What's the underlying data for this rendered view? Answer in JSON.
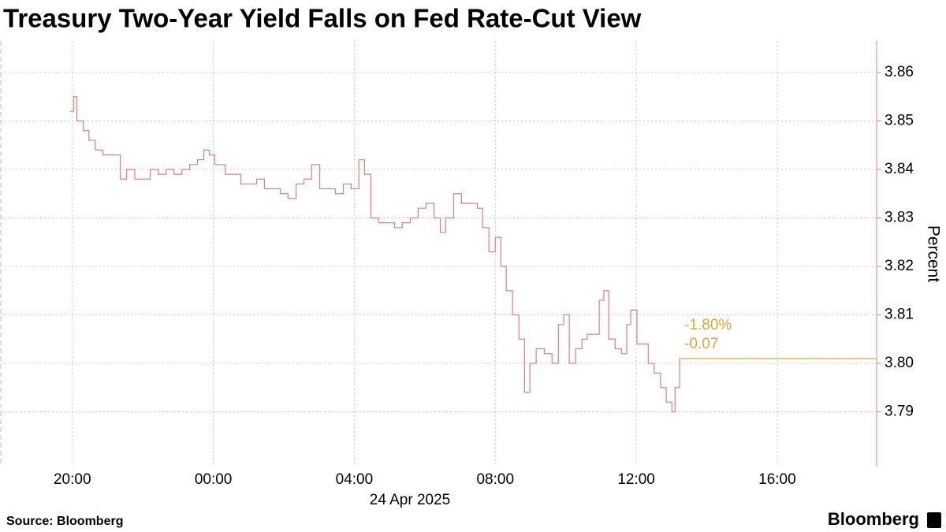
{
  "chart_data": {
    "type": "line",
    "title": "Treasury Two-Year Yield Falls on Fed Rate-Cut View",
    "y_axis_label": "Percent",
    "date_label": "24 Apr 2025",
    "source": "Source: Bloomberg",
    "brand": "Bloomberg",
    "annotations": [
      "-1.80%",
      "-0.07"
    ],
    "annotation_color": "#e8a23a",
    "grid": true,
    "xlim": [
      -6.03,
      18.82
    ],
    "xticks": [
      {
        "value": -4,
        "label": "20:00"
      },
      {
        "value": 0,
        "label": "00:00"
      },
      {
        "value": 4,
        "label": "04:00"
      },
      {
        "value": 8,
        "label": "08:00"
      },
      {
        "value": 12,
        "label": "12:00"
      },
      {
        "value": 16,
        "label": "16:00"
      }
    ],
    "ylim": [
      3.7787,
      3.8665
    ],
    "yticks": [
      3.79,
      {
        "value": 3.8,
        "label": "3.80"
      },
      3.81,
      3.82,
      3.83,
      3.84,
      3.85,
      3.86
    ],
    "x": [
      -4.07,
      -3.96,
      -3.87,
      -3.69,
      -3.53,
      -3.35,
      -3.13,
      -2.79,
      -2.64,
      -2.46,
      -2.23,
      -2.01,
      -1.79,
      -1.56,
      -1.34,
      -1.12,
      -0.89,
      -0.67,
      -0.45,
      -0.27,
      -0.11,
      0.04,
      0.34,
      0.56,
      0.78,
      1.01,
      1.23,
      1.45,
      1.68,
      1.9,
      2.12,
      2.35,
      2.57,
      2.79,
      3.02,
      3.24,
      3.46,
      3.69,
      3.91,
      4.13,
      4.29,
      4.47,
      4.69,
      4.92,
      5.14,
      5.36,
      5.59,
      5.81,
      6.03,
      6.26,
      6.44,
      6.59,
      6.82,
      7.04,
      7.26,
      7.49,
      7.64,
      7.82,
      8.0,
      8.16,
      8.31,
      8.49,
      8.67,
      8.83,
      8.98,
      9.16,
      9.39,
      9.61,
      9.79,
      9.94,
      10.1,
      10.28,
      10.46,
      10.61,
      10.77,
      10.95,
      11.08,
      11.22,
      11.4,
      11.58,
      11.73,
      11.84,
      12.02,
      12.18,
      12.34,
      12.51,
      12.69,
      12.85,
      13.01,
      13.1,
      13.23
    ],
    "series": [
      {
        "name": "Treasury two-year yield",
        "color": "#e57c7c",
        "values": [
          3.852,
          3.855,
          3.85,
          3.848,
          3.846,
          3.844,
          3.843,
          3.843,
          3.838,
          3.84,
          3.838,
          3.838,
          3.84,
          3.839,
          3.84,
          3.839,
          3.84,
          3.841,
          3.842,
          3.844,
          3.843,
          3.841,
          3.839,
          3.839,
          3.837,
          3.837,
          3.838,
          3.836,
          3.836,
          3.835,
          3.834,
          3.837,
          3.838,
          3.841,
          3.836,
          3.836,
          3.835,
          3.837,
          3.836,
          3.842,
          3.839,
          3.83,
          3.829,
          3.829,
          3.828,
          3.829,
          3.83,
          3.832,
          3.833,
          3.83,
          3.827,
          3.83,
          3.835,
          3.833,
          3.833,
          3.832,
          3.828,
          3.823,
          3.826,
          3.82,
          3.815,
          3.81,
          3.805,
          3.794,
          3.8,
          3.803,
          3.802,
          3.8,
          3.808,
          3.81,
          3.8,
          3.803,
          3.805,
          3.806,
          3.806,
          3.813,
          3.815,
          3.805,
          3.803,
          3.802,
          3.808,
          3.811,
          3.804,
          3.804,
          3.8,
          3.798,
          3.795,
          3.792,
          3.79,
          3.795,
          3.801
        ]
      }
    ]
  }
}
